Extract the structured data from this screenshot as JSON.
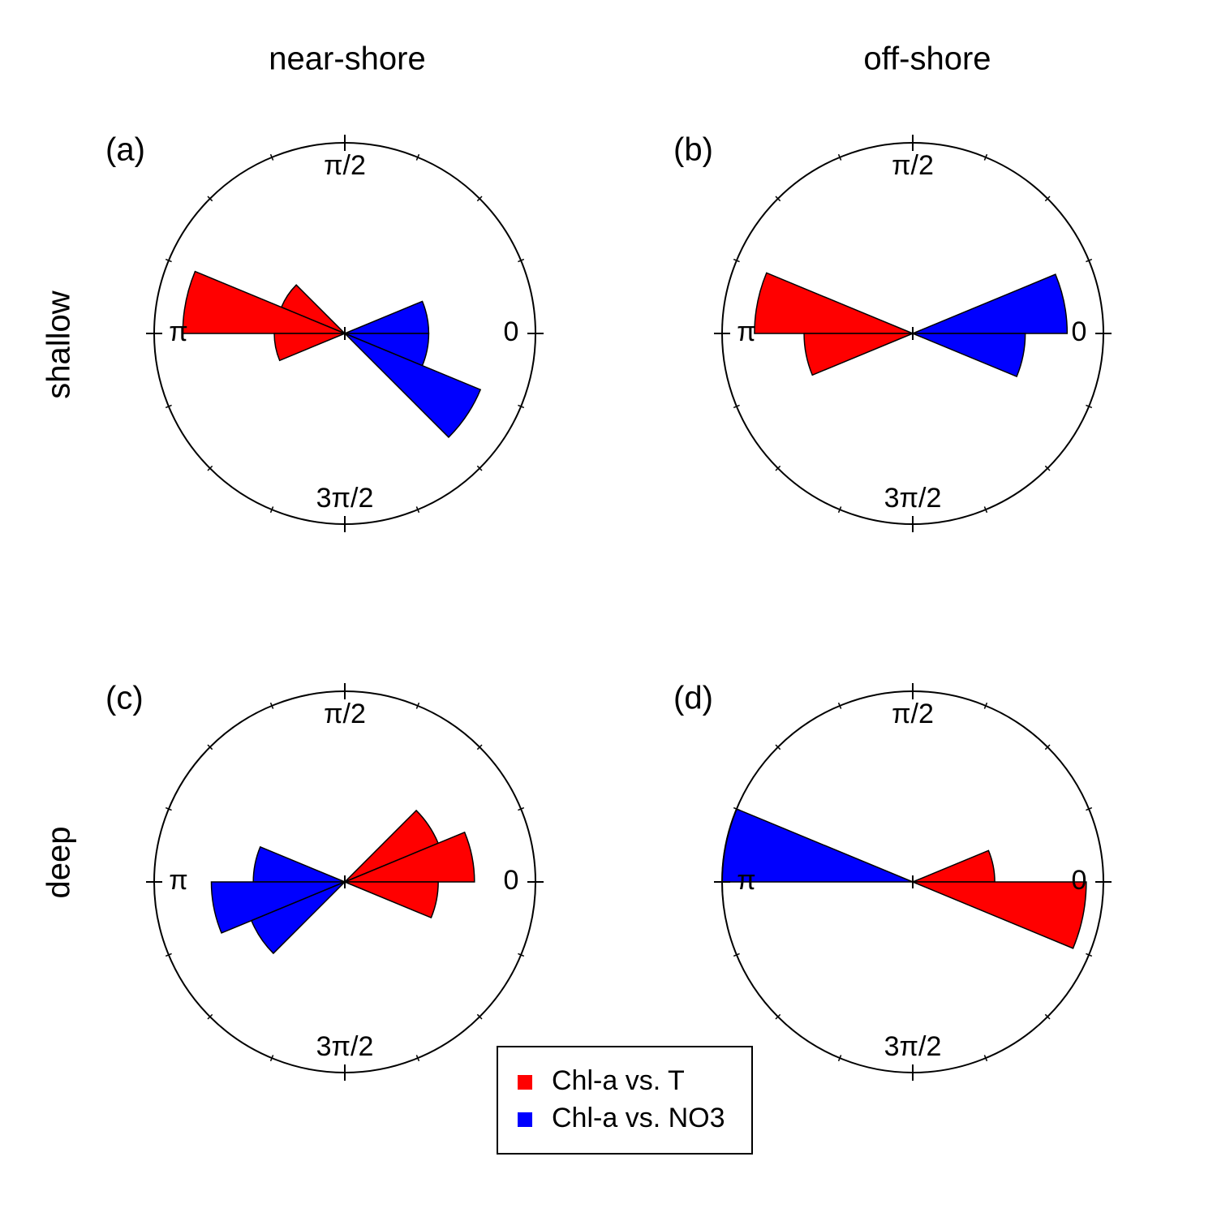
{
  "column_titles": [
    "near-shore",
    "off-shore"
  ],
  "row_titles": [
    "shallow",
    "deep"
  ],
  "chart_data": [
    {
      "type": "rose",
      "label": "(a)",
      "rlim": [
        0,
        1
      ],
      "bin_width": 0.3927,
      "minor_tick_step": 0.3927,
      "thetaticks": [
        {
          "value": 0,
          "label": "0"
        },
        {
          "value": 1.5708,
          "label": "π/2"
        },
        {
          "value": 3.1416,
          "label": "π"
        },
        {
          "value": 4.7124,
          "label": "3π/2"
        }
      ],
      "series": [
        {
          "name": "Chl-a vs. T",
          "color": "#ff0000",
          "theta": [
            2.3562,
            2.7489,
            3.1416
          ],
          "values": [
            0.36,
            0.85,
            0.37
          ]
        },
        {
          "name": "Chl-a vs. NO3",
          "color": "#0000ff",
          "theta": [
            0,
            5.8905,
            5.4978
          ],
          "values": [
            0.44,
            0.44,
            0.77
          ]
        }
      ]
    },
    {
      "type": "rose",
      "label": "(b)",
      "rlim": [
        0,
        1
      ],
      "bin_width": 0.3927,
      "minor_tick_step": 0.3927,
      "thetaticks": [
        {
          "value": 0,
          "label": "0"
        },
        {
          "value": 1.5708,
          "label": "π/2"
        },
        {
          "value": 3.1416,
          "label": "π"
        },
        {
          "value": 4.7124,
          "label": "3π/2"
        }
      ],
      "series": [
        {
          "name": "Chl-a vs. T",
          "color": "#ff0000",
          "theta": [
            2.7489,
            3.1416
          ],
          "values": [
            0.83,
            0.57
          ]
        },
        {
          "name": "Chl-a vs. NO3",
          "color": "#0000ff",
          "theta": [
            0,
            5.8905
          ],
          "values": [
            0.81,
            0.59
          ]
        }
      ]
    },
    {
      "type": "rose",
      "label": "(c)",
      "rlim": [
        0,
        1
      ],
      "bin_width": 0.3927,
      "minor_tick_step": 0.3927,
      "thetaticks": [
        {
          "value": 0,
          "label": "0"
        },
        {
          "value": 1.5708,
          "label": "π/2"
        },
        {
          "value": 3.1416,
          "label": "π"
        },
        {
          "value": 4.7124,
          "label": "3π/2"
        }
      ],
      "series": [
        {
          "name": "Chl-a vs. T",
          "color": "#ff0000",
          "theta": [
            0.3927,
            0,
            5.8905
          ],
          "values": [
            0.53,
            0.68,
            0.49
          ]
        },
        {
          "name": "Chl-a vs. NO3",
          "color": "#0000ff",
          "theta": [
            2.7489,
            3.1416,
            3.5343
          ],
          "values": [
            0.48,
            0.7,
            0.53
          ]
        }
      ]
    },
    {
      "type": "rose",
      "label": "(d)",
      "rlim": [
        0,
        1
      ],
      "bin_width": 0.3927,
      "minor_tick_step": 0.3927,
      "thetaticks": [
        {
          "value": 0,
          "label": "0"
        },
        {
          "value": 1.5708,
          "label": "π/2"
        },
        {
          "value": 3.1416,
          "label": "π"
        },
        {
          "value": 4.7124,
          "label": "3π/2"
        }
      ],
      "series": [
        {
          "name": "Chl-a vs. T",
          "color": "#ff0000",
          "theta": [
            0,
            5.8905
          ],
          "values": [
            0.43,
            0.91
          ]
        },
        {
          "name": "Chl-a vs. NO3",
          "color": "#0000ff",
          "theta": [
            2.7489
          ],
          "values": [
            1.0
          ]
        }
      ]
    }
  ]
}
